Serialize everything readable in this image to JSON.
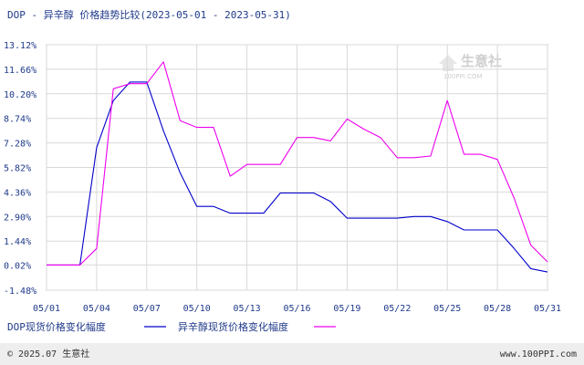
{
  "chart_data": {
    "type": "line",
    "title": "DOP - 异辛醇 价格趋势比较",
    "date_range": "(2023-05-01 - 2023-05-31)",
    "x_ticks": [
      "05/01",
      "05/04",
      "05/07",
      "05/10",
      "05/13",
      "05/16",
      "05/19",
      "05/22",
      "05/25",
      "05/28",
      "05/31"
    ],
    "y_ticks": [
      "13.12%",
      "11.66%",
      "10.20%",
      "8.74%",
      "7.28%",
      "5.82%",
      "4.36%",
      "2.90%",
      "1.44%",
      "0.02%",
      "-1.48%"
    ],
    "y_tick_values": [
      13.12,
      11.66,
      10.2,
      8.74,
      7.28,
      5.82,
      4.36,
      2.9,
      1.44,
      0.02,
      -1.48
    ],
    "ylim": [
      -1.48,
      13.12
    ],
    "xlim": [
      "05/01",
      "05/31"
    ],
    "grid": true,
    "x_day": [
      1,
      2,
      3,
      4,
      5,
      6,
      7,
      8,
      9,
      10,
      11,
      12,
      13,
      14,
      15,
      16,
      17,
      18,
      19,
      20,
      21,
      22,
      23,
      24,
      25,
      26,
      27,
      28,
      29,
      30,
      31
    ],
    "series": [
      {
        "name": "DOP现货价格变化幅度",
        "color": "#0000cc",
        "values": [
          0.02,
          0.02,
          0.02,
          7.0,
          9.8,
          10.9,
          10.9,
          8.0,
          5.5,
          3.5,
          3.5,
          3.1,
          3.1,
          3.1,
          4.3,
          4.3,
          4.3,
          3.8,
          2.8,
          2.8,
          2.8,
          2.8,
          2.9,
          2.9,
          2.6,
          2.1,
          2.1,
          2.1,
          1.0,
          -0.2,
          -0.4
        ]
      },
      {
        "name": "异辛醇现货价格变化幅度",
        "color": "#ee00ee",
        "values": [
          0.02,
          0.02,
          0.02,
          1.0,
          10.5,
          10.8,
          10.8,
          12.1,
          8.6,
          8.2,
          8.2,
          5.3,
          6.0,
          6.0,
          6.0,
          7.6,
          7.6,
          7.4,
          8.7,
          8.1,
          7.6,
          6.4,
          6.4,
          6.5,
          9.8,
          6.6,
          6.6,
          6.3,
          4.0,
          1.2,
          0.2
        ]
      }
    ]
  },
  "watermark": {
    "text": "生意社",
    "url": "100PPI.COM"
  },
  "footer": {
    "copyright": "© 2025.07 生意社",
    "site": "www.100PPI.com"
  }
}
